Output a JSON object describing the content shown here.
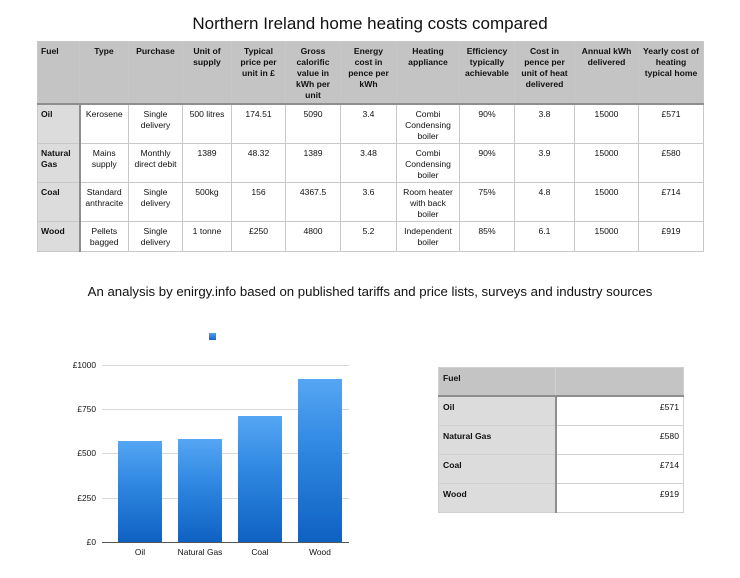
{
  "title": "Northern Ireland home heating costs compared",
  "main_table": {
    "headers": [
      "Fuel",
      "Type",
      "Purchase",
      "Unit of supply",
      "Typical price per unit in £",
      "Gross calorific value in kWh per unit",
      "Energy cost in pence per kWh",
      "Heating appliance",
      "Efficiency typically achievable",
      "Cost in pence per unit of heat delivered",
      "Annual kWh delivered",
      "Yearly cost of heating typical home"
    ],
    "rows": [
      [
        "Oil",
        "Kerosene",
        "Single delivery",
        "500 litres",
        "174.51",
        "5090",
        "3.4",
        "Combi Condensing boiler",
        "90%",
        "3.8",
        "15000",
        "£571"
      ],
      [
        "Natural Gas",
        "Mains supply",
        "Monthly direct debit",
        "1389",
        "48.32",
        "1389",
        "3.48",
        "Combi Condensing boiler",
        "90%",
        "3.9",
        "15000",
        "£580"
      ],
      [
        "Coal",
        "Standard anthracite",
        "Single delivery",
        "500kg",
        "156",
        "4367.5",
        "3.6",
        "Room heater with back boiler",
        "75%",
        "4.8",
        "15000",
        "£714"
      ],
      [
        "Wood",
        "Pellets bagged",
        "Single delivery",
        "1 tonne",
        "£250",
        "4800",
        "5.2",
        "Independent boiler",
        "85%",
        "6.1",
        "15000",
        "£919"
      ]
    ]
  },
  "subtitle": "An analysis by enirgy.info based on published tariffs and price lists, surveys and industry sources",
  "chart_data": {
    "type": "bar",
    "title": "",
    "categories": [
      "Oil",
      "Natural Gas",
      "Coal",
      "Wood"
    ],
    "values": [
      571,
      580,
      714,
      919
    ],
    "xlabel": "",
    "ylabel": "",
    "ylim": [
      0,
      1000
    ],
    "yticks": [
      "£0",
      "£250",
      "£500",
      "£750",
      "£1000"
    ],
    "legend": [
      ""
    ],
    "legend_position": "top",
    "grid": true,
    "color": "#2e86e0"
  },
  "side_table": {
    "headers": [
      "Fuel",
      ""
    ],
    "rows": [
      [
        "Oil",
        "£571"
      ],
      [
        "Natural Gas",
        "£580"
      ],
      [
        "Coal",
        "£714"
      ],
      [
        "Wood",
        "£919"
      ]
    ]
  }
}
